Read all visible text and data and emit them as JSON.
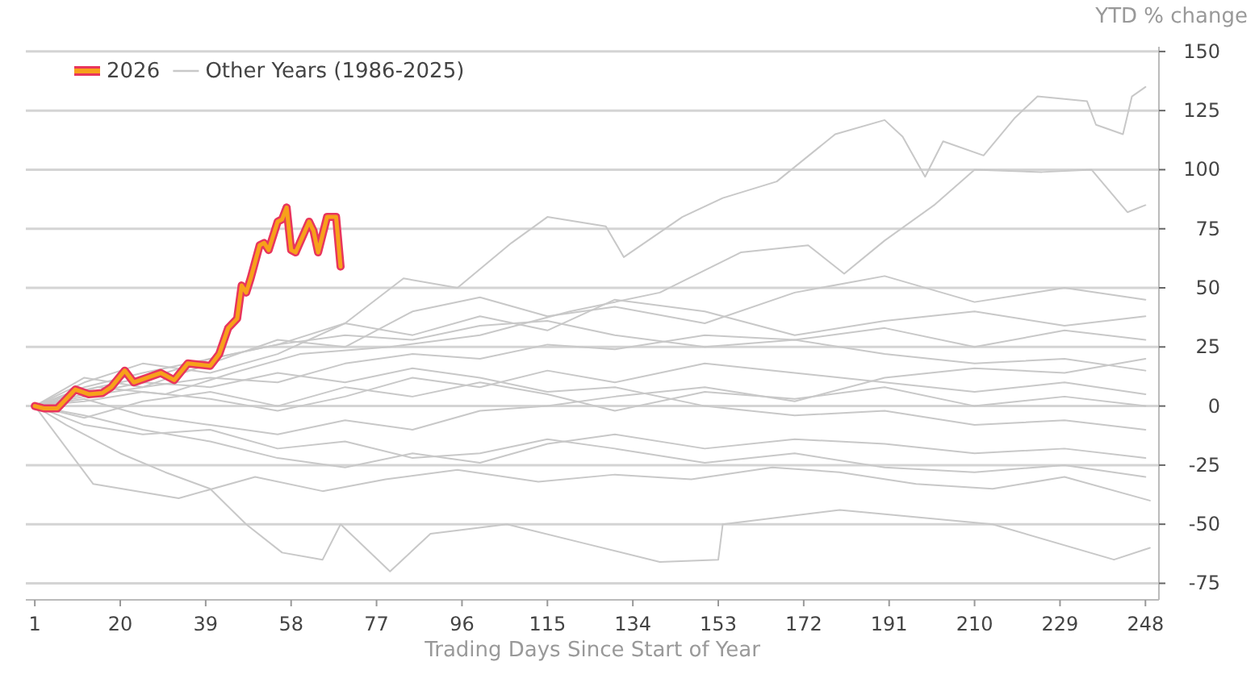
{
  "chart_data": {
    "type": "line",
    "xlabel": "Trading Days Since Start of Year",
    "ylabel": "YTD % change",
    "xlim": [
      -1,
      251
    ],
    "ylim": [
      -82,
      152
    ],
    "xticks": [
      1,
      20,
      39,
      58,
      77,
      96,
      115,
      134,
      153,
      172,
      191,
      210,
      229,
      248
    ],
    "yticks": [
      -75,
      -50,
      -25,
      0,
      25,
      50,
      75,
      100,
      125,
      150
    ],
    "grid": "y",
    "legend": "top left",
    "series": [
      {
        "name": "2026",
        "color": "#f7a11a",
        "x": [
          1,
          3,
          6,
          10,
          13,
          16,
          18,
          21,
          23,
          26,
          29,
          32,
          35,
          40,
          42,
          44,
          46,
          47,
          48,
          49,
          51,
          52,
          53,
          55,
          56,
          57,
          58,
          59,
          62,
          63,
          64,
          66,
          68,
          69
        ],
        "values": [
          0,
          -1,
          -1,
          7,
          5,
          5.5,
          8,
          15,
          10,
          12,
          14,
          11,
          18,
          17,
          22,
          33,
          37,
          51,
          48,
          54,
          68,
          69,
          66,
          78,
          79,
          84,
          66,
          65,
          78,
          74,
          65,
          80,
          80,
          59
        ]
      },
      {
        "name": "Other Years (1986-2025)",
        "color": "#c8c8c8",
        "x": [
          1,
          10,
          20,
          30,
          40,
          55,
          70,
          83,
          95,
          107,
          115,
          128,
          132,
          145,
          154,
          166,
          179,
          190,
          194,
          199,
          203,
          212,
          219,
          224,
          235,
          237,
          243,
          245,
          248
        ],
        "values": [
          0,
          6,
          10,
          14,
          20,
          26,
          35,
          54,
          50,
          69,
          80,
          76,
          63,
          80,
          88,
          95,
          115,
          121,
          114,
          97,
          112,
          106,
          122,
          131,
          129,
          119,
          115,
          131,
          135
        ]
      },
      {
        "color": "#c8c8c8",
        "x": [
          1,
          15,
          30,
          45,
          60,
          80,
          100,
          120,
          140,
          158,
          173,
          181,
          190,
          201,
          210,
          225,
          236,
          244,
          248
        ],
        "values": [
          0,
          8,
          5,
          14,
          22,
          25,
          30,
          40,
          48,
          65,
          68,
          56,
          70,
          85,
          100,
          99,
          100,
          82,
          85
        ]
      },
      {
        "color": "#c8c8c8",
        "x": [
          1,
          8,
          20,
          30,
          40,
          48,
          56,
          65,
          69,
          80,
          89,
          106,
          123,
          140,
          153,
          154,
          180,
          214,
          241,
          249
        ],
        "values": [
          0,
          -8,
          -20,
          -28,
          -35,
          -50,
          -62,
          -65,
          -50,
          -70,
          -54,
          -50,
          -58,
          -66,
          -65,
          -50,
          -44,
          -50,
          -65,
          -60
        ]
      },
      {
        "color": "#c8c8c8",
        "x": [
          1,
          14,
          33,
          50,
          65,
          79,
          95,
          113,
          130,
          147,
          165,
          180,
          197,
          214,
          230,
          249
        ],
        "values": [
          0,
          -33,
          -39,
          -30,
          -36,
          -31,
          -27,
          -32,
          -29,
          -31,
          -26,
          -28,
          -33,
          -35,
          -30,
          -40
        ]
      },
      {
        "color": "#c8c8c8",
        "x": [
          1,
          12,
          25,
          40,
          55,
          70,
          85,
          100,
          115,
          130,
          150,
          170,
          190,
          210,
          230,
          248
        ],
        "values": [
          0,
          12,
          8,
          18,
          28,
          25,
          40,
          46,
          38,
          42,
          35,
          48,
          55,
          44,
          50,
          45
        ]
      },
      {
        "color": "#c8c8c8",
        "x": [
          1,
          12,
          25,
          40,
          55,
          70,
          85,
          100,
          115,
          130,
          150,
          170,
          190,
          210,
          230,
          248
        ],
        "values": [
          0,
          4,
          8,
          12,
          10,
          18,
          22,
          20,
          26,
          24,
          30,
          28,
          33,
          25,
          32,
          28
        ]
      },
      {
        "color": "#c8c8c8",
        "x": [
          1,
          12,
          25,
          40,
          55,
          70,
          85,
          100,
          115,
          130,
          150,
          170,
          190,
          210,
          230,
          248
        ],
        "values": [
          0,
          -5,
          2,
          6,
          0,
          8,
          4,
          10,
          5,
          -2,
          6,
          3,
          8,
          0,
          4,
          0
        ]
      },
      {
        "color": "#c8c8c8",
        "x": [
          1,
          12,
          25,
          40,
          55,
          70,
          85,
          100,
          115,
          130,
          150,
          170,
          190,
          210,
          230,
          248
        ],
        "values": [
          0,
          -8,
          -12,
          -10,
          -18,
          -15,
          -22,
          -20,
          -14,
          -18,
          -24,
          -20,
          -26,
          -28,
          -25,
          -30
        ]
      },
      {
        "color": "#c8c8c8",
        "x": [
          1,
          12,
          25,
          40,
          55,
          70,
          85,
          100,
          115,
          130,
          150,
          170,
          190,
          210,
          230,
          248
        ],
        "values": [
          0,
          8,
          14,
          20,
          26,
          30,
          28,
          34,
          36,
          30,
          25,
          28,
          22,
          18,
          20,
          15
        ]
      },
      {
        "color": "#c8c8c8",
        "x": [
          1,
          12,
          25,
          40,
          55,
          70,
          85,
          100,
          115,
          130,
          150,
          170,
          190,
          210,
          230,
          248
        ],
        "values": [
          0,
          3,
          -4,
          -8,
          -12,
          -6,
          -10,
          -2,
          0,
          4,
          8,
          2,
          12,
          16,
          14,
          20
        ]
      },
      {
        "color": "#c8c8c8",
        "x": [
          1,
          12,
          25,
          40,
          55,
          70,
          85,
          100,
          115,
          130,
          150,
          170,
          190,
          210,
          230,
          248
        ],
        "values": [
          0,
          5,
          10,
          8,
          14,
          10,
          16,
          12,
          6,
          8,
          0,
          -4,
          -2,
          -8,
          -6,
          -10
        ]
      },
      {
        "color": "#c8c8c8",
        "x": [
          1,
          12,
          25,
          40,
          55,
          70,
          85,
          100,
          115,
          130,
          150,
          170,
          190,
          210,
          230,
          248
        ],
        "values": [
          0,
          -4,
          -10,
          -15,
          -22,
          -26,
          -20,
          -24,
          -16,
          -12,
          -18,
          -14,
          -16,
          -20,
          -18,
          -22
        ]
      },
      {
        "color": "#c8c8c8",
        "x": [
          1,
          12,
          25,
          40,
          55,
          70,
          85,
          100,
          115,
          130,
          150,
          170,
          190,
          210,
          230,
          248
        ],
        "values": [
          0,
          10,
          18,
          14,
          22,
          35,
          30,
          38,
          32,
          45,
          40,
          30,
          36,
          40,
          34,
          38
        ]
      },
      {
        "color": "#c8c8c8",
        "x": [
          1,
          12,
          25,
          40,
          55,
          70,
          85,
          100,
          115,
          130,
          150,
          170,
          190,
          210,
          230,
          248
        ],
        "values": [
          0,
          2,
          6,
          3,
          -2,
          4,
          12,
          8,
          15,
          10,
          18,
          14,
          10,
          6,
          10,
          5
        ]
      }
    ]
  }
}
